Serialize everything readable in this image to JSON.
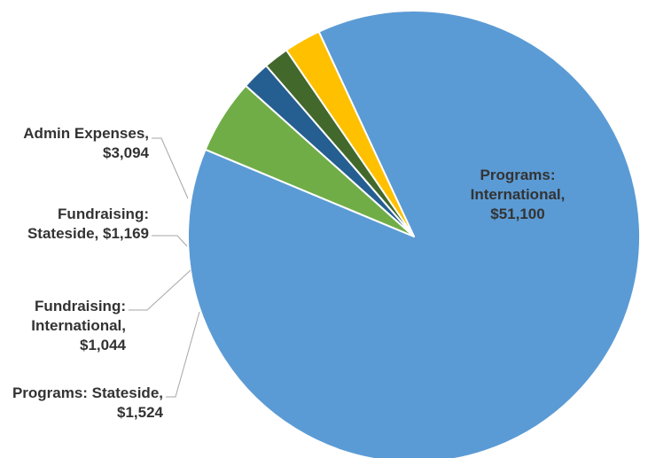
{
  "chart_data": {
    "type": "pie",
    "title": "",
    "legend": "none",
    "slices": [
      {
        "label_lines": [
          "Programs:",
          "International,",
          "$51,100"
        ],
        "category": "Programs: International",
        "value": 51100,
        "color": "#5b9bd5"
      },
      {
        "label_lines": [
          "Admin Expenses,",
          "$3,094"
        ],
        "category": "Admin Expenses",
        "value": 3094,
        "color": "#70ad47"
      },
      {
        "label_lines": [
          "Fundraising:",
          "Stateside,  $1,169"
        ],
        "category": "Fundraising: Stateside",
        "value": 1169,
        "color": "#255e91"
      },
      {
        "label_lines": [
          "Fundraising:",
          "International,",
          "$1,044"
        ],
        "category": "Fundraising: International",
        "value": 1044,
        "color": "#43682b"
      },
      {
        "label_lines": [
          "Programs: Stateside,",
          "$1,524"
        ],
        "category": "Programs: Stateside",
        "value": 1524,
        "color": "#ffc000"
      }
    ]
  }
}
